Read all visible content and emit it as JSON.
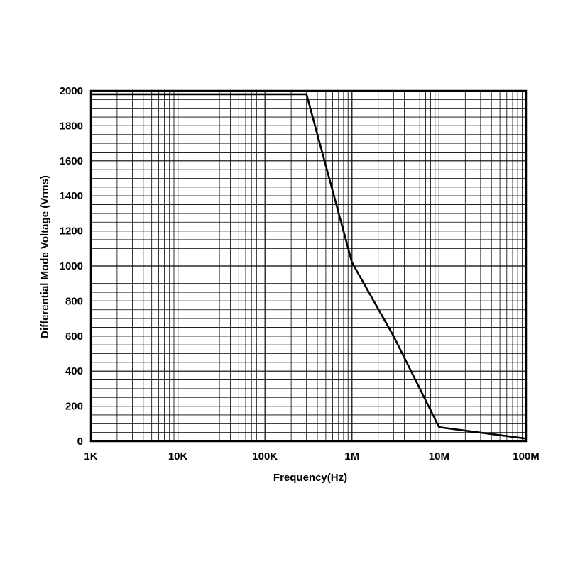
{
  "chart_data": {
    "type": "line",
    "title": "",
    "xlabel": "Frequency(Hz)",
    "ylabel": "Differential Mode Voltage (Vrms)",
    "xscale": "log",
    "xlim": [
      1000,
      100000000
    ],
    "ylim": [
      0,
      2000
    ],
    "x_ticks": [
      {
        "value": 1000,
        "label": "1K"
      },
      {
        "value": 10000,
        "label": "10K"
      },
      {
        "value": 100000,
        "label": "100K"
      },
      {
        "value": 1000000,
        "label": "1M"
      },
      {
        "value": 10000000,
        "label": "10M"
      },
      {
        "value": 100000000,
        "label": "100M"
      }
    ],
    "y_ticks": [
      {
        "value": 0,
        "label": "0"
      },
      {
        "value": 200,
        "label": "200"
      },
      {
        "value": 400,
        "label": "400"
      },
      {
        "value": 600,
        "label": "600"
      },
      {
        "value": 800,
        "label": "800"
      },
      {
        "value": 1000,
        "label": "1000"
      },
      {
        "value": 1200,
        "label": "1200"
      },
      {
        "value": 1400,
        "label": "1400"
      },
      {
        "value": 1600,
        "label": "1600"
      },
      {
        "value": 1800,
        "label": "1800"
      },
      {
        "value": 2000,
        "label": "2000"
      }
    ],
    "grid": true,
    "y_minor_step": 50,
    "series": [
      {
        "x": [
          1000,
          300000,
          1000000,
          3000000,
          10000000,
          100000000
        ],
        "y": [
          1980,
          1980,
          1020,
          600,
          80,
          15
        ]
      }
    ]
  },
  "colors": {
    "line": "#000000",
    "grid": "#000000",
    "frame": "#000000",
    "background": "#ffffff"
  }
}
